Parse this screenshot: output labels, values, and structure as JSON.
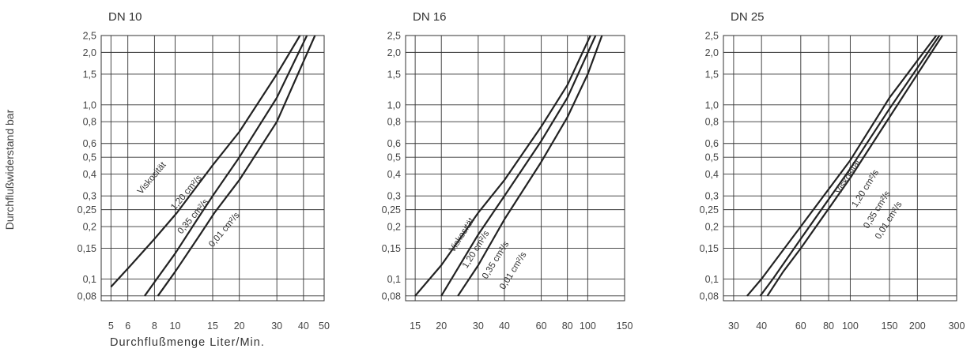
{
  "y_axis_title": "Durchflußwiderstand bar",
  "x_axis_title": "Durchflußmenge Liter/Min.",
  "chart_data": [
    {
      "type": "line",
      "title": "DN 10",
      "xscale": "log",
      "yscale": "log",
      "xlim": [
        4.5,
        50
      ],
      "ylim": [
        0.075,
        2.5
      ],
      "x_ticks": [
        5,
        6,
        8,
        10,
        15,
        20,
        30,
        40,
        50
      ],
      "x_tick_labels": [
        "5",
        "6",
        "8",
        "10",
        "15",
        "20",
        "30",
        "40",
        "50"
      ],
      "y_ticks": [
        0.08,
        0.1,
        0.15,
        0.2,
        0.25,
        0.3,
        0.4,
        0.5,
        0.6,
        0.8,
        1.0,
        1.5,
        2.0,
        2.5
      ],
      "y_tick_labels": [
        "0,08",
        "0,1",
        "0,15",
        "0,2",
        "0,25",
        "0,3",
        "0,4",
        "0,5",
        "0,6",
        "0,8",
        "1,0",
        "1,5",
        "2,0",
        "2,5"
      ],
      "grid": true,
      "curve_caption": "Viskosität",
      "series": [
        {
          "name": "1,20 cm²/s",
          "x": [
            5.0,
            6.2,
            8.0,
            10.2,
            15.0,
            20.0,
            30.0,
            38.5
          ],
          "y": [
            0.09,
            0.12,
            0.17,
            0.24,
            0.45,
            0.7,
            1.5,
            2.5
          ]
        },
        {
          "name": "0,35 cm²/s",
          "x": [
            7.2,
            8.2,
            10.0,
            12.7,
            15.0,
            20.0,
            30.0,
            41.5
          ],
          "y": [
            0.08,
            0.1,
            0.14,
            0.22,
            0.3,
            0.5,
            1.1,
            2.5
          ]
        },
        {
          "name": "0,01 cm²/s",
          "x": [
            8.3,
            10.0,
            13.1,
            15.3,
            20.0,
            30.0,
            45.3
          ],
          "y": [
            0.08,
            0.11,
            0.18,
            0.24,
            0.37,
            0.8,
            2.5
          ]
        }
      ]
    },
    {
      "type": "line",
      "title": "DN 16",
      "xscale": "log",
      "yscale": "log",
      "xlim": [
        13.5,
        150
      ],
      "ylim": [
        0.075,
        2.5
      ],
      "x_ticks": [
        15,
        20,
        30,
        40,
        60,
        80,
        100,
        150
      ],
      "x_tick_labels": [
        "15",
        "20",
        "30",
        "40",
        "60",
        "80",
        "100",
        "150"
      ],
      "y_ticks": [
        0.08,
        0.1,
        0.15,
        0.2,
        0.25,
        0.3,
        0.4,
        0.5,
        0.6,
        0.8,
        1.0,
        1.5,
        2.0,
        2.5
      ],
      "y_tick_labels": [
        "0,08",
        "0,1",
        "0,15",
        "0,2",
        "0,25",
        "0,3",
        "0,4",
        "0,5",
        "0,6",
        "0,8",
        "1,0",
        "1,5",
        "2,0",
        "2,5"
      ],
      "grid": true,
      "curve_caption": "Viskosität",
      "series": [
        {
          "name": "1,20 cm²/s",
          "x": [
            15.0,
            20.0,
            30.0,
            40.0,
            60.0,
            80.0,
            103.0
          ],
          "y": [
            0.08,
            0.12,
            0.24,
            0.37,
            0.75,
            1.3,
            2.5
          ]
        },
        {
          "name": "0,35 cm²/s",
          "x": [
            20.0,
            30.0,
            40.0,
            60.0,
            80.0,
            109.0
          ],
          "y": [
            0.08,
            0.18,
            0.3,
            0.62,
            1.1,
            2.5
          ]
        },
        {
          "name": "0,01 cm²/s",
          "x": [
            24.0,
            30.0,
            40.0,
            60.0,
            80.0,
            100.0,
            117.0
          ],
          "y": [
            0.08,
            0.12,
            0.22,
            0.47,
            0.85,
            1.5,
            2.5
          ]
        }
      ]
    },
    {
      "type": "line",
      "title": "DN 25",
      "xscale": "log",
      "yscale": "log",
      "xlim": [
        27,
        300
      ],
      "ylim": [
        0.075,
        2.5
      ],
      "x_ticks": [
        30,
        40,
        60,
        80,
        100,
        150,
        200,
        300
      ],
      "x_tick_labels": [
        "30",
        "40",
        "60",
        "80",
        "100",
        "150",
        "200",
        "300"
      ],
      "y_ticks": [
        0.08,
        0.1,
        0.15,
        0.2,
        0.25,
        0.3,
        0.4,
        0.5,
        0.6,
        0.8,
        1.0,
        1.5,
        2.0,
        2.5
      ],
      "y_tick_labels": [
        "0,08",
        "0,1",
        "0,15",
        "0,2",
        "0,25",
        "0,3",
        "0,4",
        "0,5",
        "0,6",
        "0,8",
        "1,0",
        "1,5",
        "2,0",
        "2,5"
      ],
      "grid": true,
      "curve_caption": "Viskosität",
      "series": [
        {
          "name": "1,20 cm²/s",
          "x": [
            34.5,
            40.0,
            60.0,
            100.0,
            150.0,
            243.0
          ],
          "y": [
            0.08,
            0.1,
            0.2,
            0.48,
            1.1,
            2.5
          ]
        },
        {
          "name": "0,35 cm²/s",
          "x": [
            39.5,
            45.0,
            60.0,
            100.0,
            150.0,
            251.0
          ],
          "y": [
            0.08,
            0.1,
            0.17,
            0.43,
            0.95,
            2.5
          ]
        },
        {
          "name": "0,01 cm²/s",
          "x": [
            42.5,
            50.0,
            60.0,
            100.0,
            150.0,
            259.0
          ],
          "y": [
            0.08,
            0.11,
            0.15,
            0.38,
            0.85,
            2.5
          ]
        }
      ]
    }
  ]
}
